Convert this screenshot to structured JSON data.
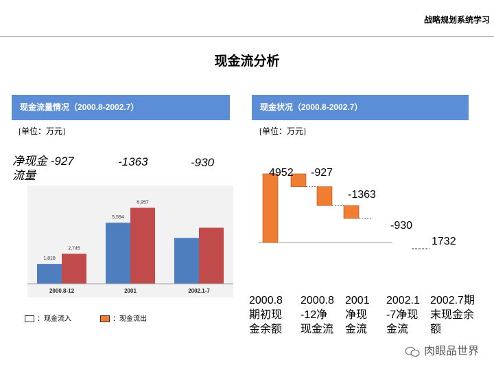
{
  "header": {
    "section": "战略规划系统学习"
  },
  "page_title": "现金流分析",
  "left_panel": {
    "title": "现金流量情况（2000.8-2002.7）",
    "unit": "[单位：万元]"
  },
  "right_panel": {
    "title": "现金状况（2000.8-2002.7）",
    "unit": "[单位：万元]"
  },
  "watermark": "肉眼品世界",
  "colors": {
    "inflow": "#4F7EBF",
    "outflow": "#C14B4B",
    "waterfall": "#EF7E32",
    "header": "#5B8ED7"
  },
  "chart_data": [
    {
      "type": "bar",
      "title": "现金流量情况（2000.8-2002.7）",
      "categories": [
        "2000.8-12",
        "2001",
        "2002.1-7"
      ],
      "series": [
        {
          "name": "：现金流入",
          "values": [
            1818,
            5594,
            4200
          ],
          "labels": [
            "1,818",
            "5,594",
            ""
          ]
        },
        {
          "name": "：现金流出",
          "values": [
            2745,
            6957,
            5130
          ],
          "labels": [
            "2,745",
            "6,957",
            ""
          ]
        }
      ],
      "ylim": [
        0,
        9000
      ],
      "net_label_text": "净现金流量",
      "net_values": [
        "-927",
        "-1363",
        "-930"
      ],
      "legend": "bottom-left"
    },
    {
      "type": "waterfall",
      "title": "现金状况（2000.8-2002.7）",
      "categories": [
        "2000.8期初现金余额",
        "2000.8-12净现金流",
        "2001净现金流",
        "2002.1-7净现金流",
        "2002.7期末现金余额"
      ],
      "category_lines": [
        [
          "2000.8",
          "期初现",
          "金余额"
        ],
        [
          "2000.8",
          "-12净",
          "现金流"
        ],
        [
          "2001",
          "净现",
          "金流"
        ],
        [
          "2002.1",
          "-7净现",
          "金流"
        ],
        [
          "2002.7期",
          "末现金余",
          "额"
        ]
      ],
      "values": [
        4952,
        -927,
        -1363,
        -930,
        1732
      ],
      "value_labels": [
        "4952",
        "-927",
        "-1363",
        "-930",
        "1732"
      ],
      "ylim": [
        0,
        5200
      ]
    }
  ]
}
